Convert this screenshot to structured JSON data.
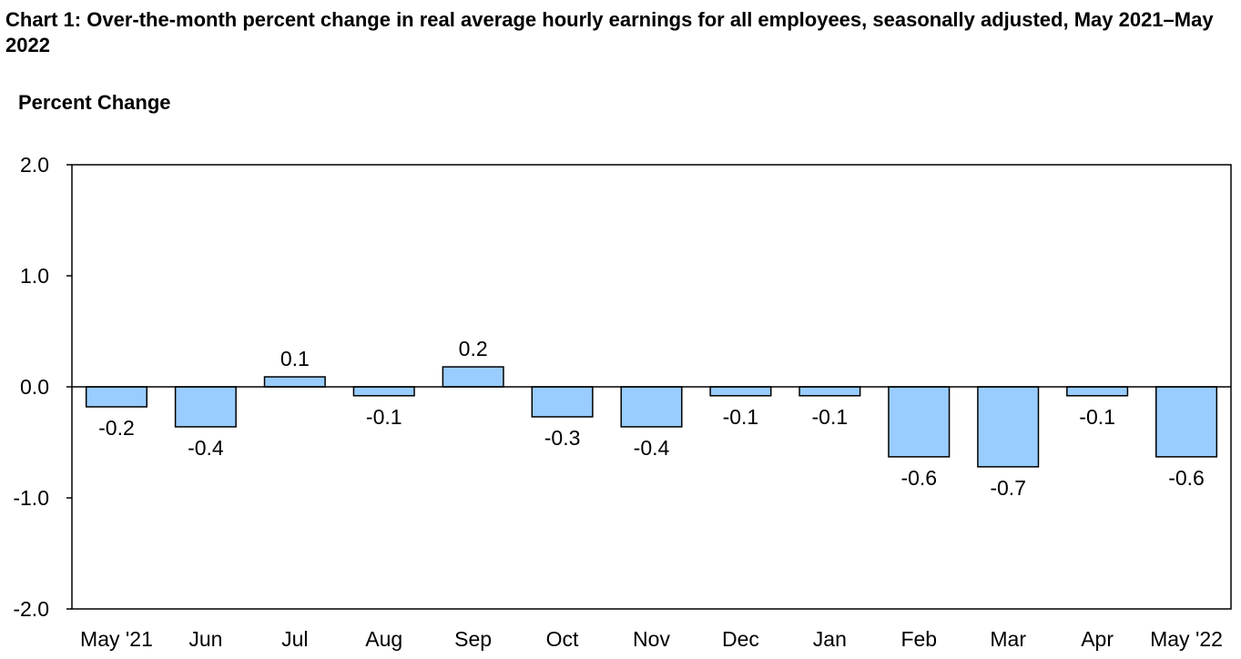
{
  "chart_data": {
    "type": "bar",
    "title": "Chart 1: Over-the-month percent change in real average hourly earnings for all employees, seasonally adjusted, May 2021–May 2022",
    "ylabel": "Percent Change",
    "xlabel": "",
    "ylim": [
      -2.0,
      2.0
    ],
    "yticks": [
      "2.0",
      "1.0",
      "0.0",
      "-1.0",
      "-2.0"
    ],
    "ytick_values": [
      2.0,
      1.0,
      0.0,
      -1.0,
      -2.0
    ],
    "grid": false,
    "legend": "none",
    "bar_color": "#99ccff",
    "categories": [
      "May '21",
      "Jun",
      "Jul",
      "Aug",
      "Sep",
      "Oct",
      "Nov",
      "Dec",
      "Jan",
      "Feb",
      "Mar",
      "Apr",
      "May '22"
    ],
    "values": [
      -0.18,
      -0.36,
      0.09,
      -0.08,
      0.18,
      -0.27,
      -0.36,
      -0.08,
      -0.08,
      -0.63,
      -0.72,
      -0.08,
      -0.63
    ],
    "data_labels": [
      "-0.2",
      "-0.4",
      "0.1",
      "-0.1",
      "0.2",
      "-0.3",
      "-0.4",
      "-0.1",
      "-0.1",
      "-0.6",
      "-0.7",
      "-0.1",
      "-0.6"
    ]
  }
}
